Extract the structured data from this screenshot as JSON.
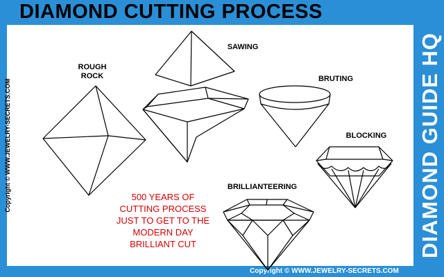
{
  "title": "DIAMOND CUTTING PROCESS",
  "side_banner": "DIAMOND GUIDE HQ",
  "copyright_left": "Copyright © WWW.JEWELRY-SECRETS.COM",
  "copyright_bottom": "Copyright © WWW.JEWELRY-SECRETS.COM",
  "stages": [
    {
      "line1": "ROUGH",
      "line2": "ROCK"
    },
    {
      "line1": "SAWING"
    },
    {
      "line1": "BRUTING"
    },
    {
      "line1": "BLOCKING"
    },
    {
      "line1": "BRILLIANTEERING"
    }
  ],
  "note_lines": [
    "500 YEARS OF",
    "CUTTING PROCESS",
    "JUST TO GET TO THE",
    "MODERN DAY",
    "BRILLIANT CUT"
  ],
  "colors": {
    "frame": "#2a8fd6",
    "note": "#d10000"
  }
}
